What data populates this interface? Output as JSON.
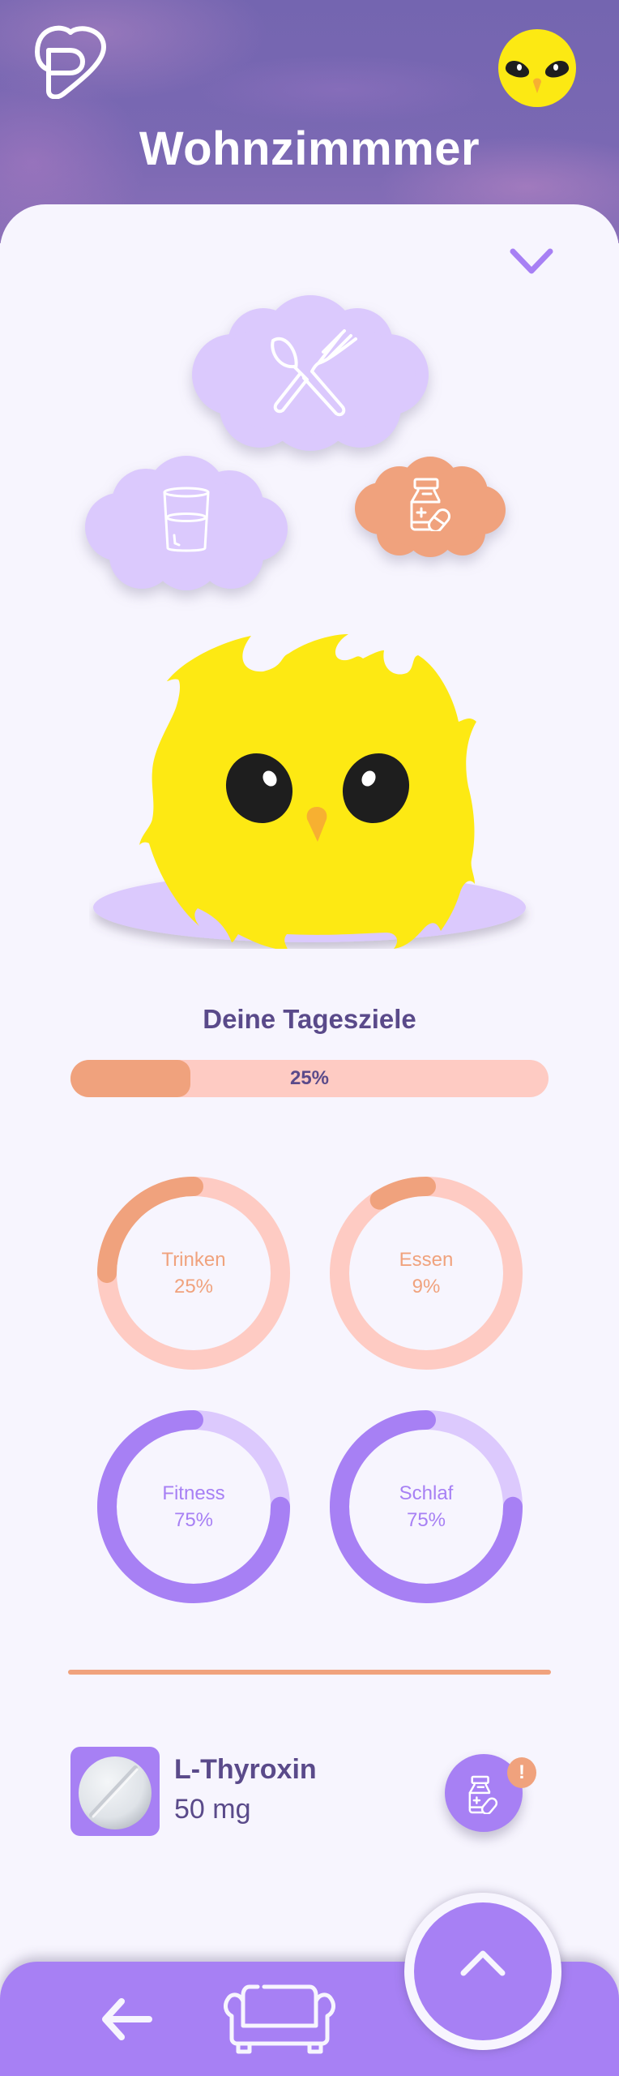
{
  "header": {
    "title": "Wohnzimmmer",
    "logo_icon": "heart-p-logo-icon",
    "avatar_icon": "chick-avatar-icon"
  },
  "card": {
    "collapse_icon": "chevron-down-icon"
  },
  "needs": [
    {
      "name": "Essen",
      "icon": "fork-spoon-icon",
      "color": "#dbc9fd"
    },
    {
      "name": "Trinken",
      "icon": "glass-icon",
      "color": "#dbc9fd"
    },
    {
      "name": "Medikament",
      "icon": "medicine-bottle-icon",
      "color": "#f0a27d"
    }
  ],
  "goals": {
    "title": "Deine Tagesziele",
    "overall_percent": 25,
    "overall_label": "25%",
    "items": [
      {
        "label": "Trinken",
        "value": "25%",
        "percent": 25,
        "color": "#f0a27d",
        "track": "#fecbc3"
      },
      {
        "label": "Essen",
        "value": "9%",
        "percent": 9,
        "color": "#f0a27d",
        "track": "#fecbc3"
      },
      {
        "label": "Fitness",
        "value": "75%",
        "percent": 75,
        "color": "#a780f4",
        "track": "#dcc9fd"
      },
      {
        "label": "Schlaf",
        "value": "75%",
        "percent": 75,
        "color": "#a780f4",
        "track": "#dcc9fd"
      }
    ]
  },
  "medication": {
    "name": "L-Thyroxin",
    "dose": "50 mg",
    "badge": "!",
    "image_icon": "pill-tablet-icon",
    "button_icon": "medicine-bottle-icon"
  },
  "nav": {
    "back_icon": "arrow-left-icon",
    "room_icon": "sofa-icon",
    "fab_icon": "chevron-up-icon"
  },
  "colors": {
    "primary": "#a780f4",
    "primary_light": "#dbc9fd",
    "accent": "#f0a27d",
    "accent_light": "#fecbc3",
    "text": "#5a4a8a",
    "background": "#f7f5fe"
  }
}
